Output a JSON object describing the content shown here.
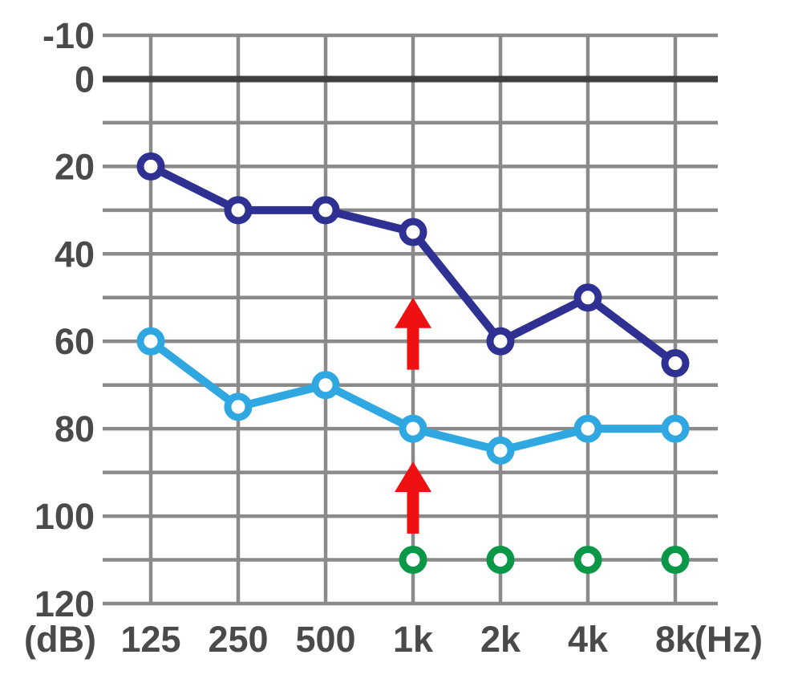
{
  "chart_data": {
    "type": "line",
    "description": "audiogram-grid-with-three-circle-series-and-red-up-arrows",
    "x_categories": [
      "125",
      "250",
      "500",
      "1k",
      "2k",
      "4k",
      "8k"
    ],
    "x_unit_label": "(Hz)",
    "y_unit_label": "(dB)",
    "y_axis": {
      "min": -10,
      "max": 120,
      "grid_step": 10,
      "tick_values": [
        -10,
        0,
        20,
        40,
        60,
        80,
        100,
        120
      ],
      "tick_labels": [
        "-10",
        "0",
        "20",
        "40",
        "60",
        "80",
        "100",
        "120"
      ],
      "zero_line_emphasized": true,
      "inverted_scale": true
    },
    "grid": true,
    "legend_position": "none",
    "series": [
      {
        "name": "navy-threshold-line",
        "color": "#2e3192",
        "marker": "open-circle",
        "line": true,
        "values": [
          20,
          30,
          30,
          35,
          60,
          50,
          65
        ]
      },
      {
        "name": "cyan-threshold-line",
        "color": "#2fa7e0",
        "marker": "open-circle",
        "line": true,
        "values": [
          60,
          75,
          70,
          80,
          85,
          80,
          80
        ]
      },
      {
        "name": "green-marker-row",
        "color": "#0a9748",
        "marker": "open-circle",
        "line": false,
        "values": [
          null,
          null,
          null,
          110,
          110,
          110,
          110
        ]
      }
    ],
    "annotations": [
      {
        "type": "up-arrow",
        "color": "#ee1111",
        "x": "1k",
        "tip_db": 50,
        "tail_db": 66.5
      },
      {
        "type": "up-arrow",
        "color": "#ee1111",
        "x": "1k",
        "tip_db": 87.5,
        "tail_db": 104
      }
    ],
    "colors": {
      "grid": "#8a8a8a",
      "zero_line": "#3f3f3f",
      "label": "#4a4a4a",
      "background": "#ffffff"
    }
  }
}
